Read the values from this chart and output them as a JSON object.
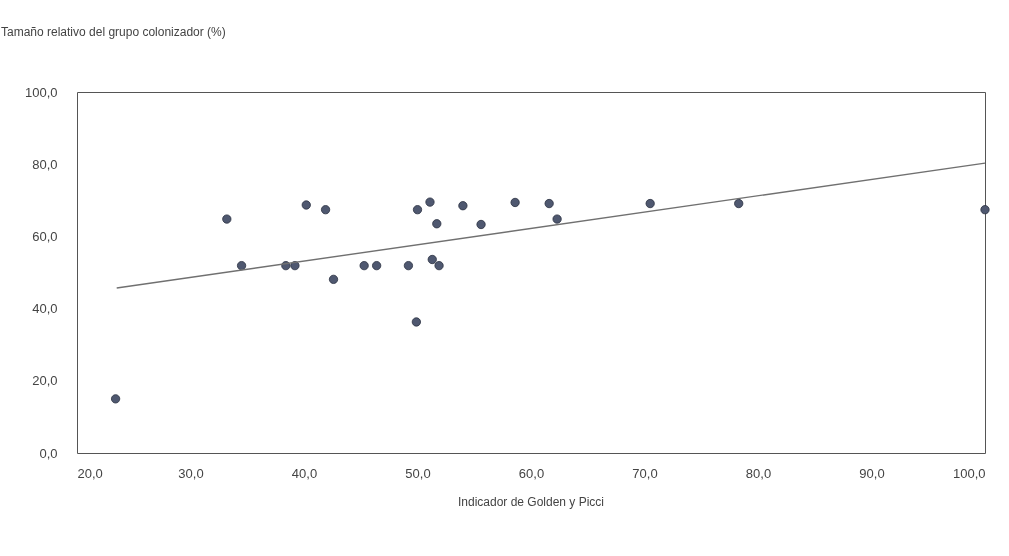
{
  "chart_data": {
    "type": "scatter",
    "ylabel": "Tamaño relativo del grupo colonizador (%)",
    "xlabel": "Indicador de Golden y Picci",
    "xlim": [
      20,
      100
    ],
    "ylim": [
      0,
      100
    ],
    "xticks": [
      {
        "value": 20,
        "label": "20,0"
      },
      {
        "value": 30,
        "label": "30,0"
      },
      {
        "value": 40,
        "label": "40,0"
      },
      {
        "value": 50,
        "label": "50,0"
      },
      {
        "value": 60,
        "label": "60,0"
      },
      {
        "value": 70,
        "label": "70,0"
      },
      {
        "value": 80,
        "label": "80,0"
      },
      {
        "value": 90,
        "label": "90,0"
      },
      {
        "value": 100,
        "label": "100,0"
      }
    ],
    "yticks": [
      {
        "value": 0,
        "label": "0,0"
      },
      {
        "value": 20,
        "label": "20,0"
      },
      {
        "value": 40,
        "label": "40,0"
      },
      {
        "value": 60,
        "label": "60,0"
      },
      {
        "value": 80,
        "label": "80,0"
      },
      {
        "value": 100,
        "label": "100,0"
      }
    ],
    "grid": false,
    "marker": "circle",
    "series": [
      {
        "color": "#4f5870",
        "x": [
          23.4,
          33.2,
          34.5,
          38.4,
          39.2,
          40.2,
          41.9,
          42.6,
          45.3,
          46.4,
          49.2,
          49.9,
          50.0,
          51.1,
          51.3,
          51.7,
          51.9,
          54.0,
          55.6,
          58.6,
          61.6,
          62.3,
          70.5,
          78.3,
          100
        ],
        "values": [
          15.0,
          64.8,
          51.9,
          51.9,
          51.9,
          68.7,
          67.4,
          48.1,
          51.9,
          51.9,
          51.9,
          36.3,
          67.4,
          69.5,
          53.6,
          63.5,
          51.9,
          68.5,
          63.3,
          69.4,
          69.1,
          64.8,
          69.1,
          69.1,
          67.4
        ]
      },
      {
        "type": "line",
        "line_style": "solid",
        "marker": "none",
        "color": "#707070",
        "x": [
          23.5,
          100
        ],
        "values": [
          45.7,
          80.3
        ]
      }
    ]
  }
}
